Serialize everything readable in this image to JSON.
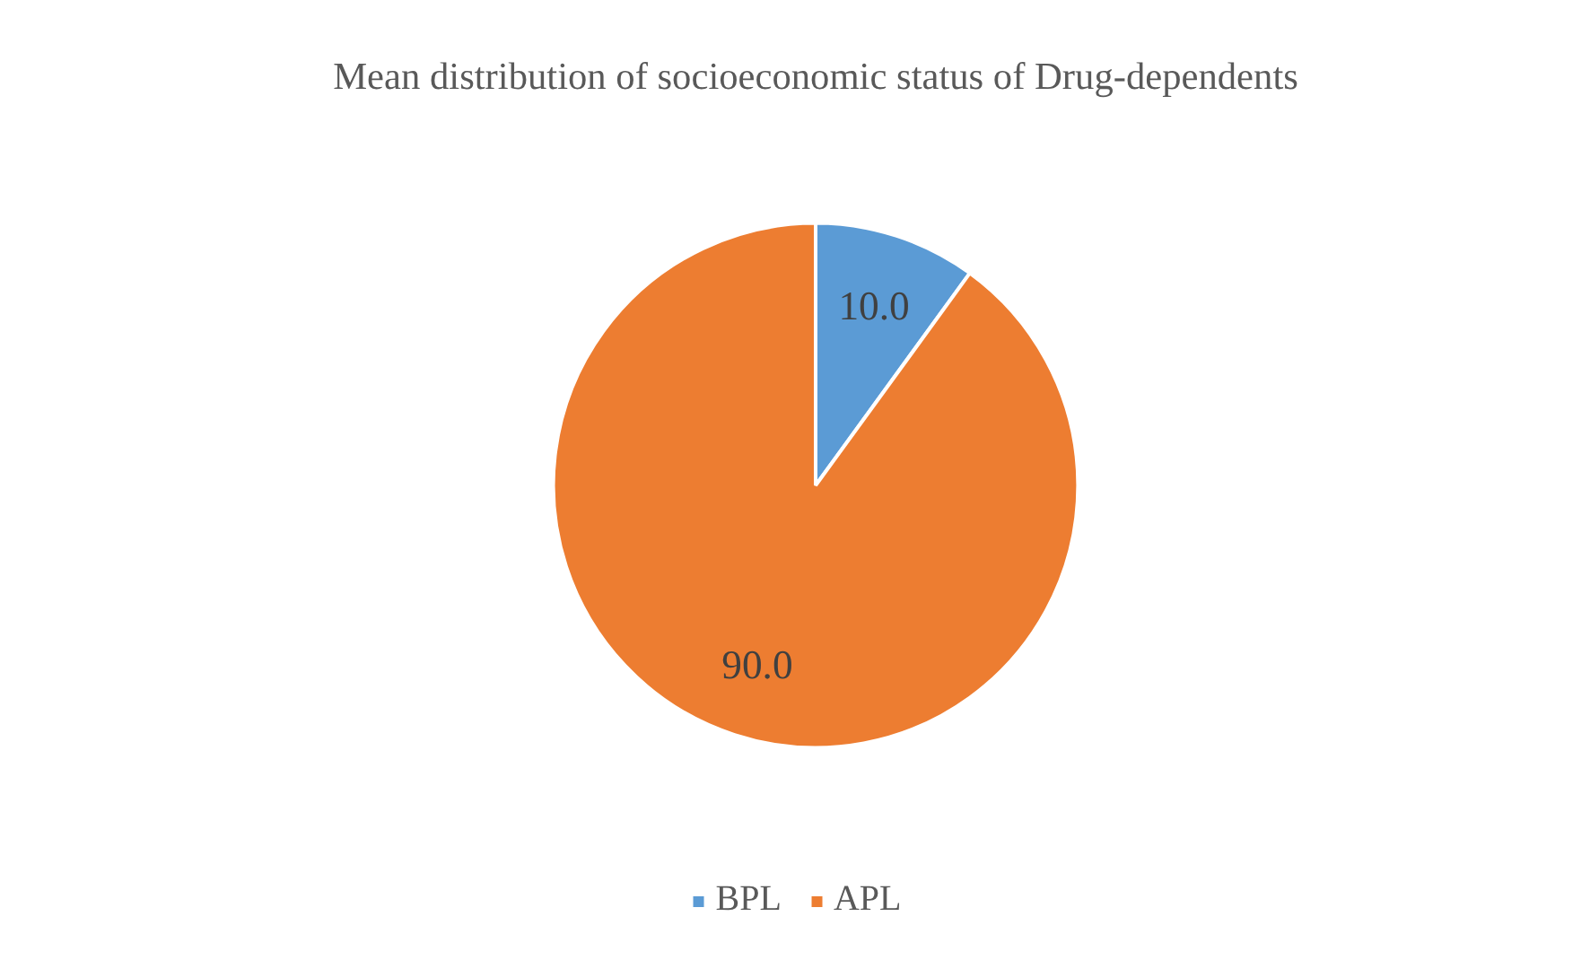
{
  "chart_data": {
    "type": "pie",
    "title": "Mean distribution of socioeconomic status of Drug-dependents",
    "categories": [
      "BPL",
      "APL"
    ],
    "values": [
      10,
      90
    ],
    "colors": [
      "#5b9bd5",
      "#ed7d31"
    ],
    "value_labels": [
      "10.0",
      "90.0"
    ],
    "legend": "bottom"
  }
}
